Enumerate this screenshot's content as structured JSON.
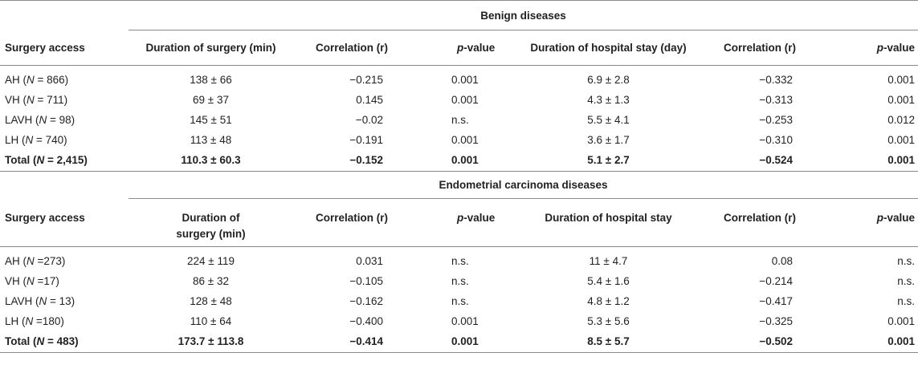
{
  "sections": [
    {
      "title": "Benign diseases",
      "header": {
        "col1": "Surgery access",
        "col2": "Duration of surgery (min)",
        "col3": "Correlation (r)",
        "col4_italic": "p",
        "col4_rest": "-value",
        "col5": "Duration of hospital stay (day)",
        "col6": "Correlation (r)",
        "col7_italic": "p",
        "col7_rest": "-value"
      },
      "rows": [
        {
          "group": "AH (",
          "n_label": "N",
          "n_rest": " = 866)",
          "duration": "138 ± 66",
          "corr1": "−0.215",
          "p1": "0.001",
          "stay": "6.9 ± 2.8",
          "corr2": "−0.332",
          "p2": "0.001"
        },
        {
          "group": "VH (",
          "n_label": "N",
          "n_rest": " = 711)",
          "duration": "69 ± 37",
          "corr1": "0.145",
          "p1": "0.001",
          "stay": "4.3 ± 1.3",
          "corr2": "−0.313",
          "p2": "0.001"
        },
        {
          "group": "LAVH (",
          "n_label": "N",
          "n_rest": " = 98)",
          "duration": "145 ± 51",
          "corr1": "−0.02",
          "p1": "n.s.",
          "stay": "5.5 ± 4.1",
          "corr2": "−0.253",
          "p2": "0.012"
        },
        {
          "group": "LH (",
          "n_label": "N",
          "n_rest": " = 740)",
          "duration": "113 ± 48",
          "corr1": "−0.191",
          "p1": "0.001",
          "stay": "3.6 ± 1.7",
          "corr2": "−0.310",
          "p2": "0.001"
        }
      ],
      "total": {
        "group": "Total (",
        "n_label": "N",
        "n_rest": " = 2,415)",
        "duration": "110.3 ± 60.3",
        "corr1": "−0.152",
        "p1": "0.001",
        "stay": "5.1 ± 2.7",
        "corr2": "−0.524",
        "p2": "0.001"
      }
    },
    {
      "title": "Endometrial carcinoma diseases",
      "header": {
        "col1": "Surgery access",
        "col2": "Duration of surgery (min)",
        "col3": "Correlation (r)",
        "col4_italic": "p",
        "col4_rest": "-value",
        "col5": "Duration of hospital stay",
        "col6": "Correlation (r)",
        "col7_italic": "p",
        "col7_rest": "-value"
      },
      "rows": [
        {
          "group": "AH (",
          "n_label": "N",
          "n_rest": " =273)",
          "duration": "224 ± 119",
          "corr1": "0.031",
          "p1": "n.s.",
          "stay": "11 ± 4.7",
          "corr2": "0.08",
          "p2": "n.s."
        },
        {
          "group": "VH (",
          "n_label": "N",
          "n_rest": " =17)",
          "duration": "86 ± 32",
          "corr1": "−0.105",
          "p1": "n.s.",
          "stay": "5.4 ± 1.6",
          "corr2": "−0.214",
          "p2": "n.s."
        },
        {
          "group": "LAVH (",
          "n_label": "N",
          "n_rest": " = 13)",
          "duration": "128 ± 48",
          "corr1": "−0.162",
          "p1": "n.s.",
          "stay": "4.8 ± 1.2",
          "corr2": "−0.417",
          "p2": "n.s."
        },
        {
          "group": "LH (",
          "n_label": "N",
          "n_rest": " =180)",
          "duration": "110 ± 64",
          "corr1": "−0.400",
          "p1": "0.001",
          "stay": "5.3 ± 5.6",
          "corr2": "−0.325",
          "p2": "0.001"
        }
      ],
      "total": {
        "group": "Total (",
        "n_label": "N",
        "n_rest": " = 483)",
        "duration": "173.7 ± 113.8",
        "corr1": "−0.414",
        "p1": "0.001",
        "stay": "8.5 ± 5.7",
        "corr2": "−0.502",
        "p2": "0.001"
      }
    }
  ]
}
